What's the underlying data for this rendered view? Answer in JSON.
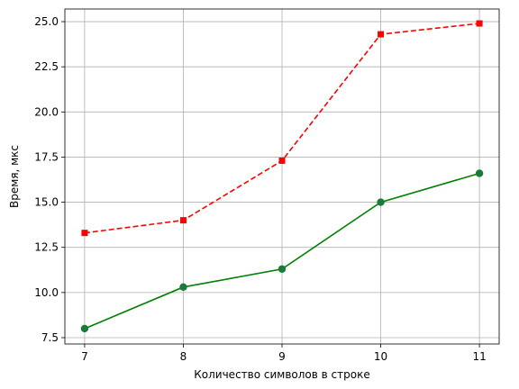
{
  "chart_data": {
    "type": "line",
    "title": "",
    "xlabel": "Количество символов в строке",
    "ylabel": "Время, мкс",
    "x": [
      7,
      8,
      9,
      10,
      11
    ],
    "x_tick_labels": [
      "7",
      "8",
      "9",
      "10",
      "11"
    ],
    "y_tick_values": [
      7.5,
      10.0,
      12.5,
      15.0,
      17.5,
      20.0,
      22.5,
      25.0
    ],
    "y_tick_labels": [
      "7.5",
      "10.0",
      "12.5",
      "15.0",
      "17.5",
      "20.0",
      "22.5",
      "25.0"
    ],
    "xlim": [
      6.8,
      11.2
    ],
    "ylim": [
      7.15,
      25.7
    ],
    "grid": true,
    "series": [
      {
        "values": [
          13.3,
          14.0,
          17.3,
          24.3,
          24.9
        ],
        "color": "#ff0000",
        "line_style": "dashed",
        "marker": "square"
      },
      {
        "values": [
          8.0,
          10.3,
          11.3,
          15.0,
          16.6
        ],
        "color": "#008000",
        "marker_color": "#1a7a3a",
        "line_style": "solid",
        "marker": "circle"
      }
    ]
  }
}
